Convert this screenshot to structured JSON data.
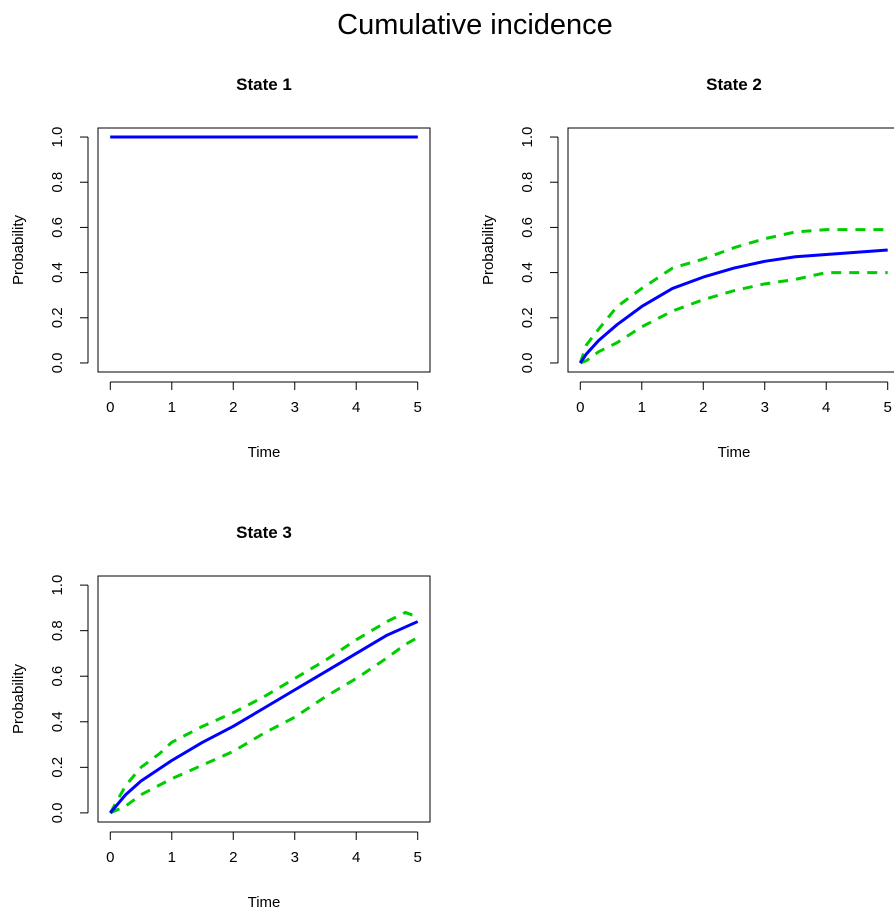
{
  "title": "Cumulative incidence",
  "chart_data": [
    {
      "type": "line",
      "title": "State 1",
      "xlabel": "Time",
      "ylabel": "Probability",
      "xlim": [
        0,
        5
      ],
      "ylim": [
        0,
        1
      ],
      "xticks": [
        "0",
        "1",
        "2",
        "3",
        "4",
        "5"
      ],
      "yticks": [
        "0.0",
        "0.2",
        "0.4",
        "0.6",
        "0.8",
        "1.0"
      ],
      "grid": false,
      "series": [
        {
          "role": "estimate",
          "style": "solid",
          "color": "#0000ff",
          "x": [
            0,
            5
          ],
          "y": [
            1.0,
            1.0
          ]
        },
        {
          "role": "upper",
          "style": "dashed",
          "color": "#00cd00",
          "x": [
            0,
            5
          ],
          "y": [
            1.0,
            1.0
          ]
        },
        {
          "role": "lower",
          "style": "dashed",
          "color": "#00cd00",
          "x": [
            0,
            5
          ],
          "y": [
            1.0,
            1.0
          ]
        }
      ]
    },
    {
      "type": "line",
      "title": "State 2",
      "xlabel": "Time",
      "ylabel": "Probability",
      "xlim": [
        0,
        5
      ],
      "ylim": [
        0,
        1
      ],
      "xticks": [
        "0",
        "1",
        "2",
        "3",
        "4",
        "5"
      ],
      "yticks": [
        "0.0",
        "0.2",
        "0.4",
        "0.6",
        "0.8",
        "1.0"
      ],
      "grid": false,
      "series": [
        {
          "role": "estimate",
          "style": "solid",
          "color": "#0000ff",
          "x": [
            0,
            0.1,
            0.3,
            0.6,
            1.0,
            1.5,
            2.0,
            2.5,
            3.0,
            3.5,
            4.0,
            4.5,
            5.0
          ],
          "y": [
            0.0,
            0.04,
            0.1,
            0.17,
            0.25,
            0.33,
            0.38,
            0.42,
            0.45,
            0.47,
            0.48,
            0.49,
            0.5
          ]
        },
        {
          "role": "upper",
          "style": "dashed",
          "color": "#00cd00",
          "x": [
            0,
            0.1,
            0.3,
            0.6,
            1.0,
            1.5,
            2.0,
            2.5,
            3.0,
            3.5,
            4.0,
            4.5,
            5.0
          ],
          "y": [
            0.0,
            0.08,
            0.15,
            0.25,
            0.33,
            0.42,
            0.46,
            0.51,
            0.55,
            0.58,
            0.59,
            0.59,
            0.59
          ]
        },
        {
          "role": "lower",
          "style": "dashed",
          "color": "#00cd00",
          "x": [
            0,
            0.1,
            0.3,
            0.6,
            1.0,
            1.5,
            2.0,
            2.5,
            3.0,
            3.5,
            4.0,
            4.5,
            5.0
          ],
          "y": [
            0.0,
            0.01,
            0.05,
            0.09,
            0.16,
            0.23,
            0.28,
            0.32,
            0.35,
            0.37,
            0.4,
            0.4,
            0.4
          ]
        }
      ]
    },
    {
      "type": "line",
      "title": "State 3",
      "xlabel": "Time",
      "ylabel": "Probability",
      "xlim": [
        0,
        5
      ],
      "ylim": [
        0,
        1
      ],
      "xticks": [
        "0",
        "1",
        "2",
        "3",
        "4",
        "5"
      ],
      "yticks": [
        "0.0",
        "0.2",
        "0.4",
        "0.6",
        "0.8",
        "1.0"
      ],
      "grid": false,
      "series": [
        {
          "role": "estimate",
          "style": "solid",
          "color": "#0000ff",
          "x": [
            0,
            0.25,
            0.5,
            1.0,
            1.5,
            2.0,
            2.5,
            3.0,
            3.5,
            4.0,
            4.5,
            5.0
          ],
          "y": [
            0.0,
            0.08,
            0.14,
            0.23,
            0.31,
            0.38,
            0.46,
            0.54,
            0.62,
            0.7,
            0.78,
            0.84
          ]
        },
        {
          "role": "upper",
          "style": "dashed",
          "color": "#00cd00",
          "x": [
            0,
            0.25,
            0.5,
            0.8,
            1.0,
            1.5,
            2.0,
            2.5,
            3.0,
            3.5,
            4.0,
            4.5,
            4.8,
            5.0
          ],
          "y": [
            0.0,
            0.12,
            0.2,
            0.26,
            0.31,
            0.38,
            0.44,
            0.51,
            0.59,
            0.67,
            0.76,
            0.84,
            0.88,
            0.86
          ]
        },
        {
          "role": "lower",
          "style": "dashed",
          "color": "#00cd00",
          "x": [
            0,
            0.25,
            0.5,
            1.0,
            1.5,
            2.0,
            2.5,
            3.0,
            3.5,
            4.0,
            4.5,
            4.8,
            5.0
          ],
          "y": [
            0.0,
            0.03,
            0.08,
            0.15,
            0.21,
            0.27,
            0.35,
            0.42,
            0.51,
            0.59,
            0.68,
            0.74,
            0.77
          ]
        }
      ]
    }
  ]
}
